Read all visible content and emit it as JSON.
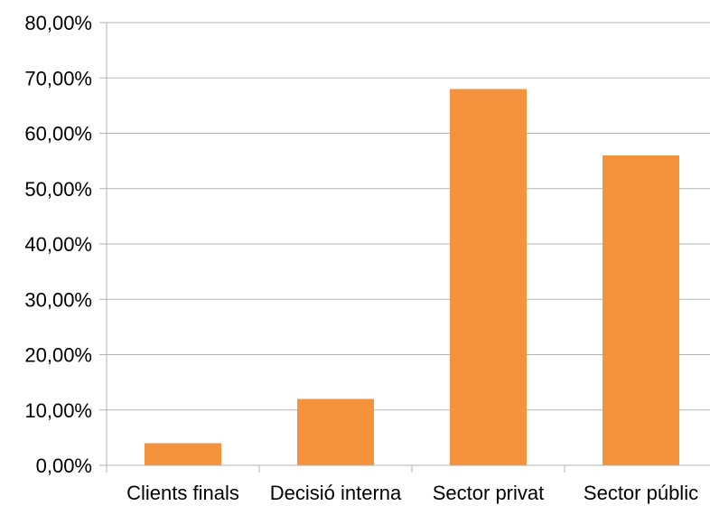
{
  "chart_data": {
    "type": "bar",
    "title": "",
    "xlabel": "",
    "ylabel": "",
    "categories": [
      "Clients finals",
      "Decisió interna",
      "Sector privat",
      "Sector públic"
    ],
    "values": [
      4,
      12,
      68,
      56
    ],
    "ylim": [
      0,
      80
    ],
    "yticks": [
      0,
      10,
      20,
      30,
      40,
      50,
      60,
      70,
      80
    ],
    "ytick_labels": [
      "0,00%",
      "10,00%",
      "20,00%",
      "30,00%",
      "40,00%",
      "50,00%",
      "60,00%",
      "70,00%",
      "80,00%"
    ],
    "grid": true,
    "legend": "none",
    "colors": {
      "bar": "#f5923e",
      "grid": "#b3b3b3",
      "axis": "#b3b3b3",
      "text": "#000000"
    }
  }
}
